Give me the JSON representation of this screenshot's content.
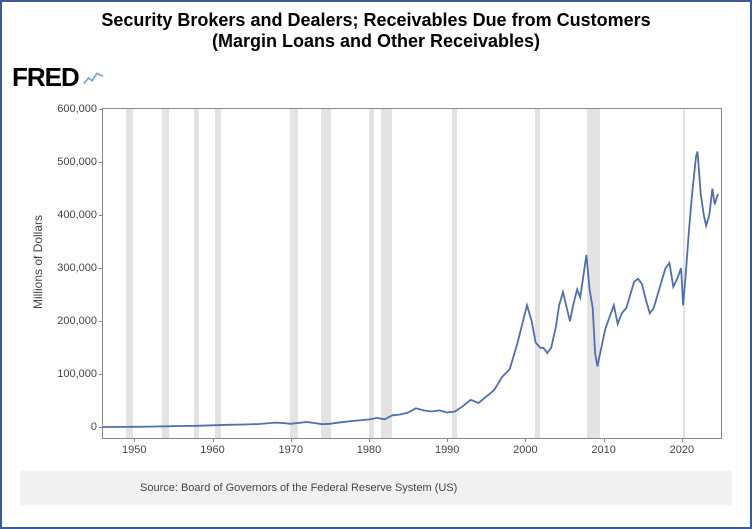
{
  "title_line1": "Security Brokers and Dealers; Receivables Due from Customers",
  "title_line2": "(Margin Loans and Other Receivables)",
  "logo_text": "FRED",
  "ylabel": "Millions of Dollars",
  "source_text": "Source: Board of Governors of the Federal Reserve System (US)",
  "chart": {
    "type": "line",
    "background_color": "#ffffff",
    "border_color": "#888888",
    "recession_color": "#e3e3e3",
    "series_color": "#4f6fae",
    "line_width": 1.8,
    "x_axis": {
      "min": 1946,
      "max": 2025,
      "ticks": [
        1950,
        1960,
        1970,
        1980,
        1990,
        2000,
        2010,
        2020
      ],
      "label_fontsize": 11,
      "label_color": "#444444"
    },
    "y_axis": {
      "min": -20000,
      "max": 600000,
      "ticks": [
        0,
        100000,
        200000,
        300000,
        400000,
        500000,
        600000
      ],
      "tick_labels": [
        "0",
        "100,000",
        "200,000",
        "300,000",
        "400,000",
        "500,000",
        "600,000"
      ],
      "label_fontsize": 11,
      "label_color": "#444444"
    },
    "recessions": [
      [
        1948.9,
        1949.8
      ],
      [
        1953.5,
        1954.4
      ],
      [
        1957.6,
        1958.3
      ],
      [
        1960.3,
        1961.1
      ],
      [
        1969.9,
        1970.9
      ],
      [
        1973.9,
        1975.2
      ],
      [
        1980.0,
        1980.6
      ],
      [
        1981.5,
        1982.9
      ],
      [
        1990.6,
        1991.2
      ],
      [
        2001.2,
        2001.9
      ],
      [
        2007.9,
        2009.5
      ],
      [
        2020.1,
        2020.4
      ]
    ],
    "series": [
      [
        1946,
        800
      ],
      [
        1950,
        1200
      ],
      [
        1952,
        1500
      ],
      [
        1954,
        2100
      ],
      [
        1956,
        2700
      ],
      [
        1958,
        3000
      ],
      [
        1960,
        3900
      ],
      [
        1962,
        4800
      ],
      [
        1964,
        5500
      ],
      [
        1966,
        6400
      ],
      [
        1968,
        9000
      ],
      [
        1969,
        8200
      ],
      [
        1970,
        6800
      ],
      [
        1972,
        10200
      ],
      [
        1973,
        8200
      ],
      [
        1974,
        6100
      ],
      [
        1975,
        6800
      ],
      [
        1976,
        8900
      ],
      [
        1978,
        12200
      ],
      [
        1980,
        14800
      ],
      [
        1981,
        17800
      ],
      [
        1982,
        15200
      ],
      [
        1983,
        22800
      ],
      [
        1984,
        24200
      ],
      [
        1985,
        28000
      ],
      [
        1986,
        36000
      ],
      [
        1987,
        32000
      ],
      [
        1988,
        30000
      ],
      [
        1989,
        32000
      ],
      [
        1990,
        28000
      ],
      [
        1991,
        30000
      ],
      [
        1992,
        40000
      ],
      [
        1993,
        52000
      ],
      [
        1994,
        46000
      ],
      [
        1995,
        58000
      ],
      [
        1996,
        70000
      ],
      [
        1997,
        95000
      ],
      [
        1998,
        110000
      ],
      [
        1999,
        160000
      ],
      [
        2000.2,
        230000
      ],
      [
        2000.8,
        200000
      ],
      [
        2001.3,
        160000
      ],
      [
        2001.9,
        150000
      ],
      [
        2002.3,
        150000
      ],
      [
        2002.8,
        140000
      ],
      [
        2003.3,
        150000
      ],
      [
        2003.9,
        190000
      ],
      [
        2004.3,
        230000
      ],
      [
        2004.8,
        255000
      ],
      [
        2005.2,
        230000
      ],
      [
        2005.7,
        200000
      ],
      [
        2006.1,
        230000
      ],
      [
        2006.6,
        260000
      ],
      [
        2007.0,
        245000
      ],
      [
        2007.4,
        285000
      ],
      [
        2007.8,
        325000
      ],
      [
        2008.2,
        260000
      ],
      [
        2008.6,
        225000
      ],
      [
        2008.9,
        140000
      ],
      [
        2009.2,
        115000
      ],
      [
        2009.7,
        150000
      ],
      [
        2010.2,
        185000
      ],
      [
        2010.8,
        210000
      ],
      [
        2011.3,
        230000
      ],
      [
        2011.8,
        195000
      ],
      [
        2012.3,
        215000
      ],
      [
        2012.9,
        225000
      ],
      [
        2013.4,
        250000
      ],
      [
        2013.9,
        275000
      ],
      [
        2014.4,
        280000
      ],
      [
        2014.9,
        270000
      ],
      [
        2015.4,
        240000
      ],
      [
        2015.9,
        215000
      ],
      [
        2016.4,
        225000
      ],
      [
        2016.9,
        250000
      ],
      [
        2017.4,
        275000
      ],
      [
        2017.9,
        300000
      ],
      [
        2018.4,
        310000
      ],
      [
        2018.9,
        265000
      ],
      [
        2019.4,
        280000
      ],
      [
        2019.9,
        300000
      ],
      [
        2020.15,
        230000
      ],
      [
        2020.5,
        290000
      ],
      [
        2020.9,
        370000
      ],
      [
        2021.3,
        440000
      ],
      [
        2021.8,
        510000
      ],
      [
        2022.0,
        520000
      ],
      [
        2022.4,
        440000
      ],
      [
        2022.8,
        400000
      ],
      [
        2023.1,
        380000
      ],
      [
        2023.5,
        400000
      ],
      [
        2023.9,
        450000
      ],
      [
        2024.2,
        420000
      ],
      [
        2024.6,
        440000
      ]
    ]
  }
}
